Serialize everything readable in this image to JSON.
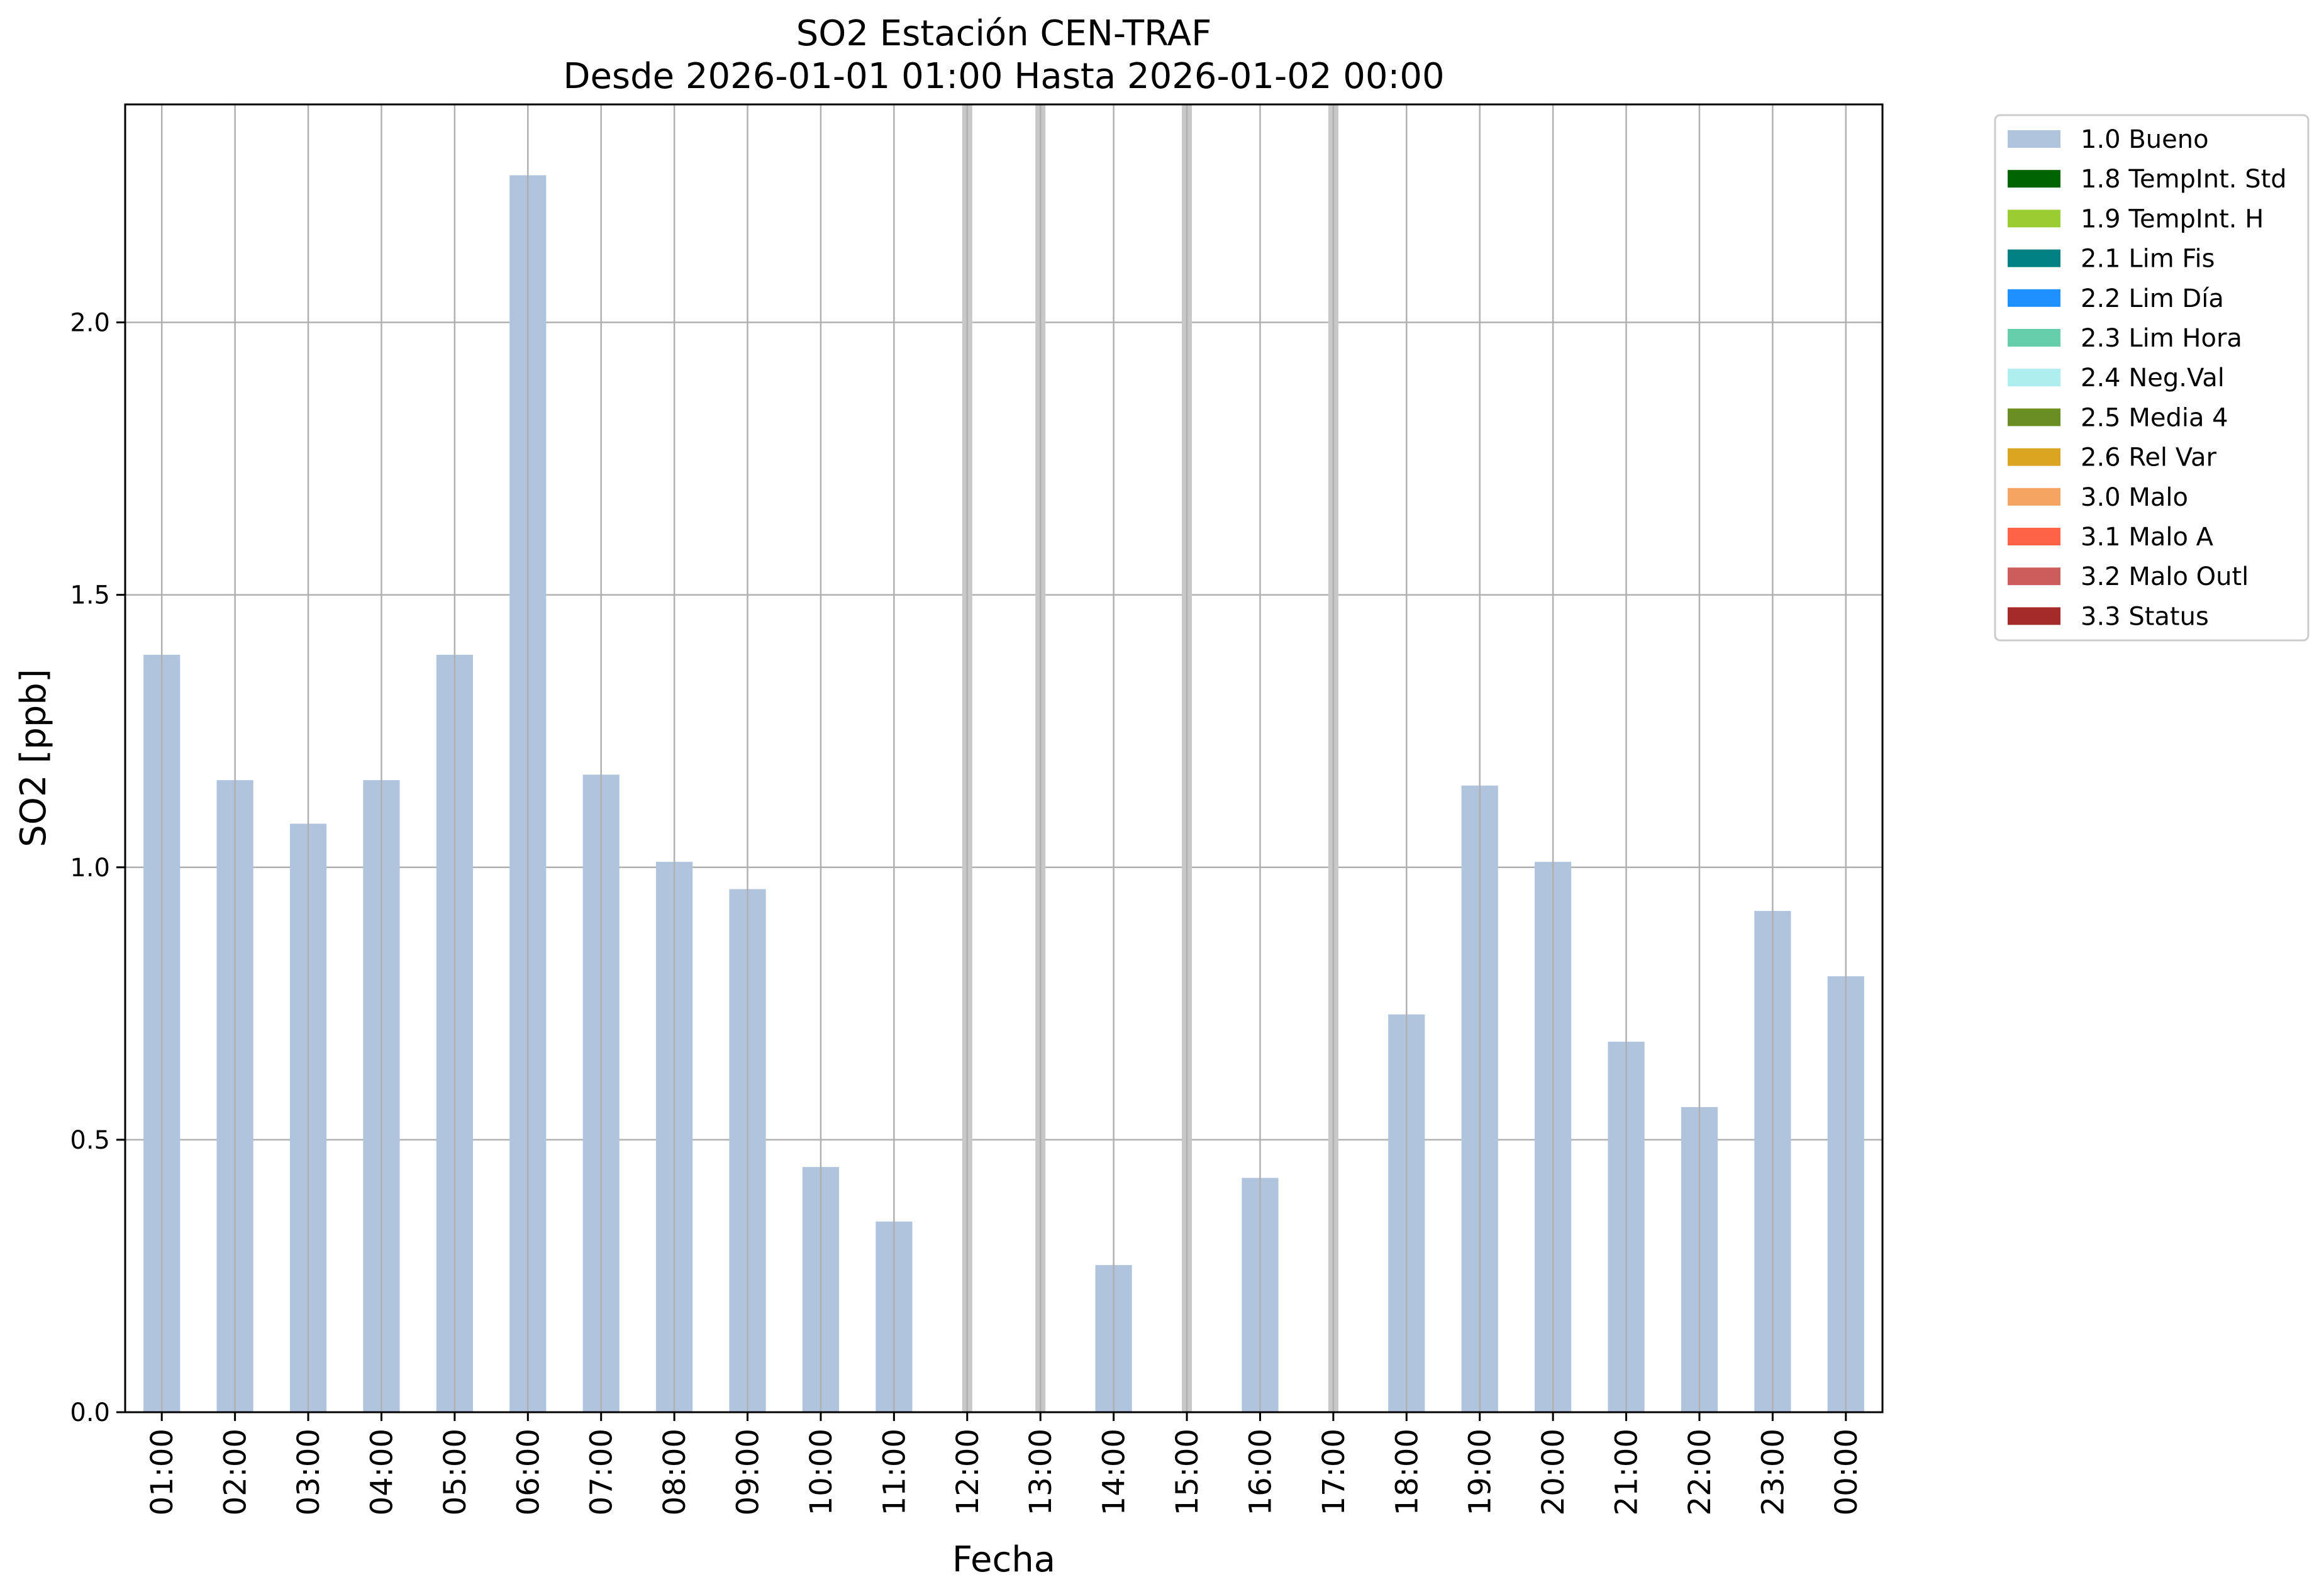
{
  "chart_data": {
    "type": "bar",
    "title": "SO2 Estación CEN-TRAF",
    "subtitle": "Desde 2026-01-01 01:00 Hasta 2026-01-02 00:00",
    "xlabel": "Fecha",
    "ylabel": "SO2 [ppb]",
    "ylim": [
      0,
      2.4
    ],
    "yticks": [
      "0.0",
      "0.5",
      "1.0",
      "1.5",
      "2.0"
    ],
    "ytick_values": [
      0,
      0.5,
      1.0,
      1.5,
      2.0
    ],
    "grid": true,
    "legend_position": "outside-top-right",
    "categories": [
      "01:00",
      "02:00",
      "03:00",
      "04:00",
      "05:00",
      "06:00",
      "07:00",
      "08:00",
      "09:00",
      "10:00",
      "11:00",
      "12:00",
      "13:00",
      "14:00",
      "15:00",
      "16:00",
      "17:00",
      "18:00",
      "19:00",
      "20:00",
      "21:00",
      "22:00",
      "23:00",
      "00:00"
    ],
    "series": [
      {
        "name": "1.0 Bueno",
        "color": "#b0c4de",
        "values": [
          1.39,
          1.16,
          1.08,
          1.16,
          1.39,
          2.27,
          1.17,
          1.01,
          0.96,
          0.45,
          0.35,
          null,
          null,
          0.27,
          null,
          0.43,
          null,
          0.73,
          1.15,
          1.01,
          0.68,
          0.56,
          0.92,
          0.8
        ]
      }
    ],
    "missing_markers": [
      "12:00",
      "13:00",
      "15:00",
      "17:00"
    ],
    "missing_color": "#c8c8c8",
    "legend": [
      {
        "label": "1.0 Bueno",
        "color": "#b0c4de"
      },
      {
        "label": "1.8 TempInt. Std",
        "color": "#006400"
      },
      {
        "label": "1.9 TempInt. H",
        "color": "#9acd32"
      },
      {
        "label": "2.1 Lim Fis",
        "color": "#008080"
      },
      {
        "label": "2.2 Lim Día",
        "color": "#1e90ff"
      },
      {
        "label": "2.3 Lim Hora",
        "color": "#66cdaa"
      },
      {
        "label": "2.4 Neg.Val",
        "color": "#afeeee"
      },
      {
        "label": "2.5 Media 4",
        "color": "#6b8e23"
      },
      {
        "label": "2.6 Rel Var",
        "color": "#daa520"
      },
      {
        "label": "3.0 Malo",
        "color": "#f4a460"
      },
      {
        "label": "3.1 Malo A",
        "color": "#ff6347"
      },
      {
        "label": "3.2 Malo Outl",
        "color": "#cd5c5c"
      },
      {
        "label": "3.3 Status",
        "color": "#a52a2a"
      }
    ]
  }
}
